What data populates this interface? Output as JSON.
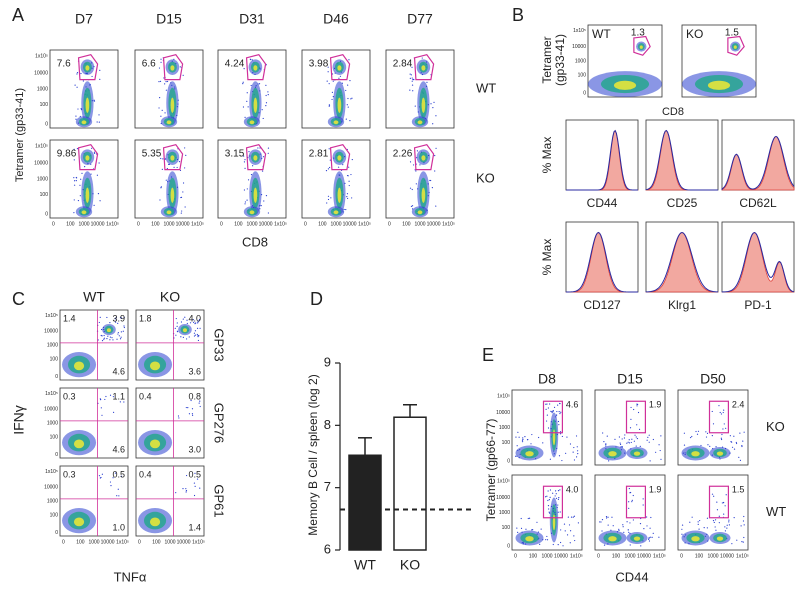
{
  "panel_labels": [
    "A",
    "B",
    "C",
    "D",
    "E"
  ],
  "flow_ticks": [
    "0",
    "100",
    "1000",
    "10000",
    "1x10⁵"
  ],
  "panel_a": {
    "columns": [
      "D7",
      "D15",
      "D31",
      "D46",
      "D77"
    ],
    "rows": [
      {
        "label": "WT",
        "gates": [
          "7.6",
          "6.6",
          "4.24",
          "3.98",
          "2.84"
        ]
      },
      {
        "label": "KO",
        "gates": [
          "9.86",
          "5.35",
          "3.15",
          "2.81",
          "2.26"
        ]
      }
    ],
    "y_label": "Tetramer (gp33-41)",
    "x_label": "CD8"
  },
  "panel_b": {
    "plots": [
      {
        "label": "WT",
        "gate": "1.3"
      },
      {
        "label": "KO",
        "gate": "1.5"
      }
    ],
    "y_label": [
      "Tetramer",
      "(gp33-41)"
    ],
    "x_label": "CD8",
    "hist_y_label": "% Max",
    "markers": [
      "CD44",
      "CD25",
      "CD62L",
      "CD127",
      "Klrg1",
      "PD-1"
    ]
  },
  "panel_c": {
    "columns": [
      "WT",
      "KO"
    ],
    "rows": [
      {
        "label": "GP33",
        "quadrants": [
          [
            "1.4",
            "3.9",
            "4.6"
          ],
          [
            "1.8",
            "4.0",
            "3.6"
          ]
        ]
      },
      {
        "label": "GP276",
        "quadrants": [
          [
            "0.3",
            "1.1",
            "4.6"
          ],
          [
            "0.4",
            "0.8",
            "3.0"
          ]
        ]
      },
      {
        "label": "GP61",
        "quadrants": [
          [
            "0.3",
            "0.5",
            "1.0"
          ],
          [
            "0.4",
            "0.5",
            "1.4"
          ]
        ]
      }
    ],
    "y_label": "IFNγ",
    "x_label": "TNFα"
  },
  "chart_data": {
    "type": "bar",
    "categories": [
      "WT",
      "KO"
    ],
    "values": [
      7.52,
      8.13
    ],
    "errors": [
      0.28,
      0.2
    ],
    "colors": [
      "#222222",
      "#ffffff"
    ],
    "baseline": 6.65,
    "ylim": [
      6,
      9
    ],
    "yticks": [
      6,
      7,
      8,
      9
    ],
    "y_label": "Memory B Cell / spleen (log 2)"
  },
  "panel_e": {
    "columns": [
      "D8",
      "D15",
      "D50"
    ],
    "rows": [
      {
        "label": "KO",
        "gates": [
          "4.6",
          "1.9",
          "2.4"
        ]
      },
      {
        "label": "WT",
        "gates": [
          "4.0",
          "1.9",
          "1.5"
        ]
      }
    ],
    "y_label": "Tetramer (gp66-77)",
    "x_label": "CD44"
  }
}
